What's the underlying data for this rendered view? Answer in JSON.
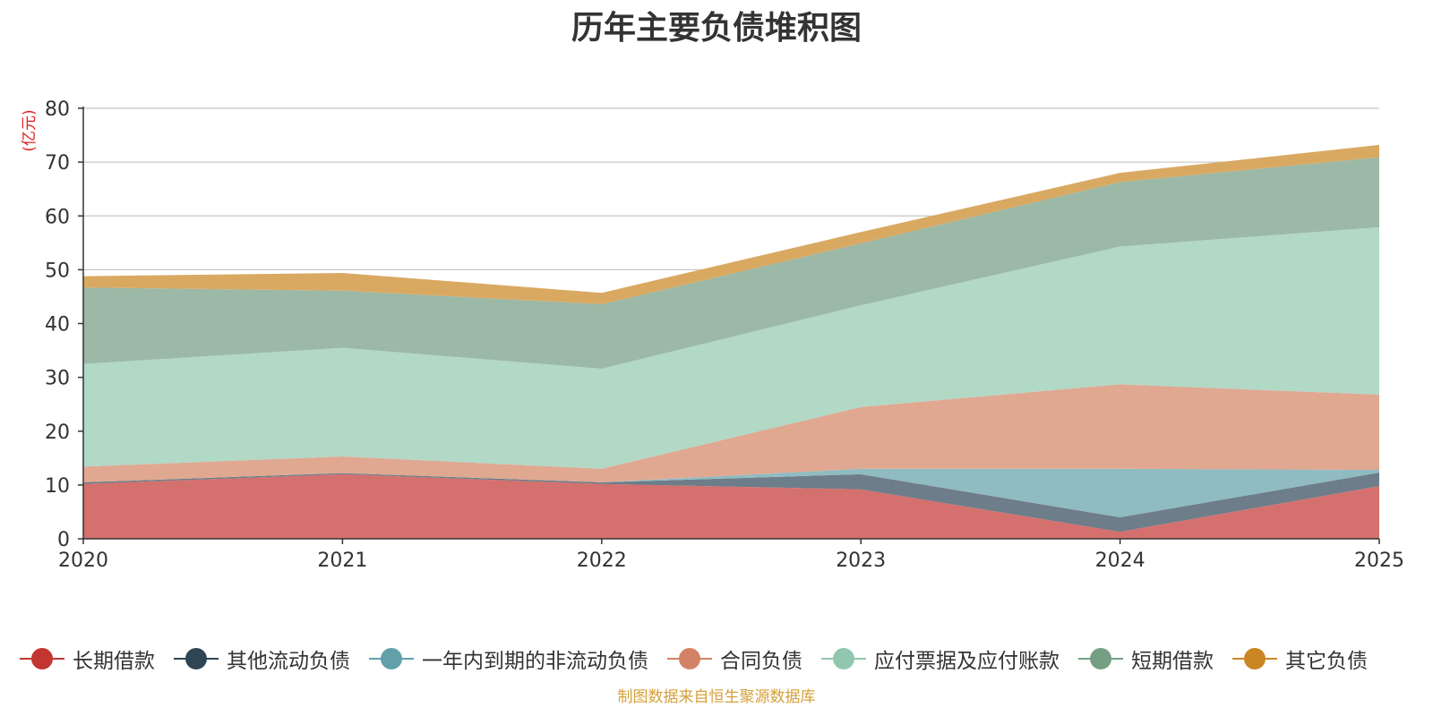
{
  "chart_data": {
    "type": "area",
    "stacked": true,
    "title": "历年主要负债堆积图",
    "ylabel": "(亿元)",
    "xlabel": "",
    "x": [
      "2020",
      "2021",
      "2022",
      "2023",
      "2024",
      "2025"
    ],
    "ylim": [
      0,
      80
    ],
    "yticks": [
      0,
      10,
      20,
      30,
      40,
      50,
      60,
      70,
      80
    ],
    "grid": true,
    "legend_position": "bottom",
    "series": [
      {
        "name": "长期借款",
        "color": "#c23531",
        "fill": "#d4706e",
        "values": [
          10.2,
          12.0,
          10.2,
          9.2,
          1.3,
          9.8
        ]
      },
      {
        "name": "其他流动负债",
        "color": "#2f4554",
        "fill": "#6d7d89",
        "values": [
          0.3,
          0.2,
          0.3,
          2.8,
          2.7,
          2.5
        ]
      },
      {
        "name": "一年内到期的非流动负债",
        "color": "#61a0a8",
        "fill": "#8fbbc1",
        "values": [
          0.0,
          0.0,
          0.0,
          1.0,
          9.0,
          0.5
        ]
      },
      {
        "name": "合同负债",
        "color": "#d48265",
        "fill": "#e0a891",
        "values": [
          2.9,
          3.1,
          2.5,
          11.5,
          15.7,
          14.0
        ]
      },
      {
        "name": "应付票据及应付账款",
        "color": "#91c7ae",
        "fill": "#b2d8c6",
        "values": [
          19.1,
          20.2,
          18.6,
          18.9,
          25.6,
          31.1
        ]
      },
      {
        "name": "短期借款",
        "color": "#749f83",
        "fill": "#9cb8a6",
        "values": [
          14.2,
          10.6,
          12.0,
          11.5,
          12.0,
          13.0
        ]
      },
      {
        "name": "其它负债",
        "color": "#ca8622",
        "fill": "#d9a962",
        "values": [
          2.1,
          3.3,
          2.1,
          2.1,
          1.7,
          2.3
        ]
      }
    ]
  },
  "source_note": "制图数据来自恒生聚源数据库"
}
